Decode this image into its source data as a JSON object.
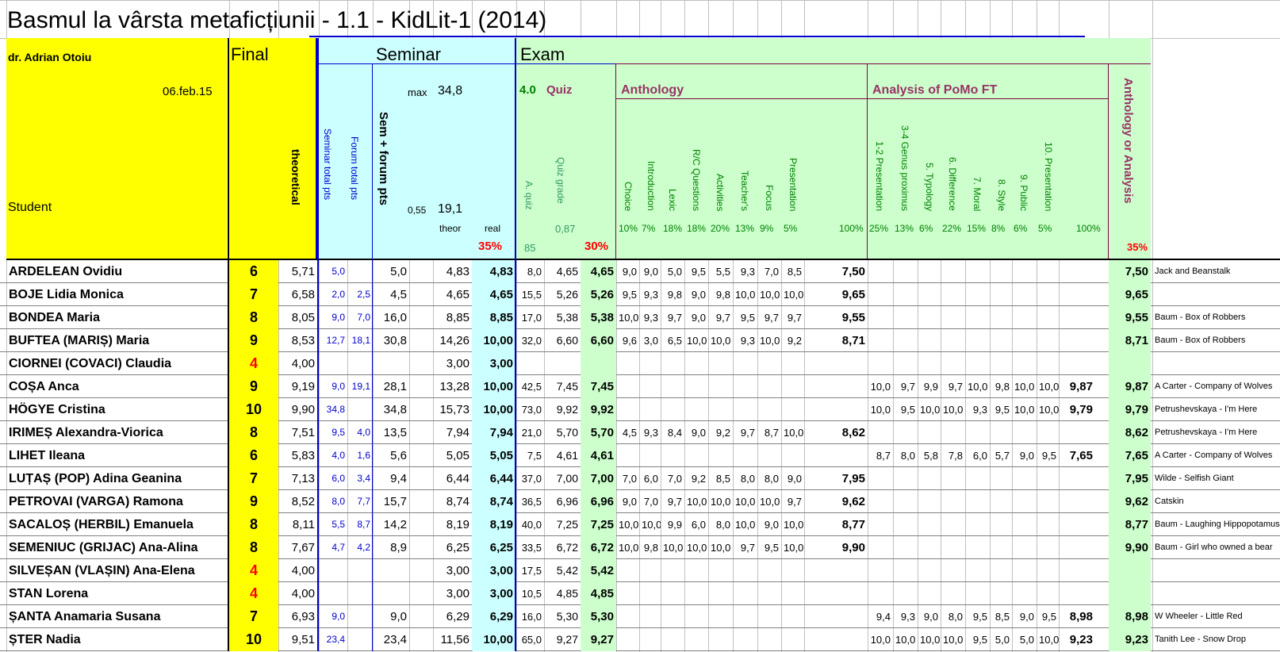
{
  "title": "Basmul la vârsta metaficțiunii - 1.1 - KidLit-1 (2014)",
  "header": {
    "teacher": "dr. Adrian Otoiu",
    "date": "06.feb.15",
    "student_label": "Student",
    "final_label": "Final",
    "theoretical_label": "theoretical",
    "seminar_label": "Seminar",
    "seminar_total": "Seminar total pts",
    "forum_total": "Forum total pts",
    "sem_forum": "Sem + forum pts",
    "max_label": "max",
    "max_value": "34,8",
    "coef": "0,55",
    "coef_value": "19,1",
    "theor": "theor",
    "real": "real",
    "sem_pct": "35%",
    "exam_label": "Exam",
    "quiz_weight": "4.0",
    "quiz_label": "Quiz",
    "a_quiz": "A. quiz",
    "quiz_grade": "Quiz grade",
    "quiz_coef": "0,87",
    "quiz_base": "85",
    "quiz_pct": "30%",
    "anthology_label": "Anthology",
    "anthology_cols": [
      {
        "name": "Choice",
        "pct": "10%"
      },
      {
        "name": "Introduction",
        "pct": "7%"
      },
      {
        "name": "Lexic",
        "pct": "18%"
      },
      {
        "name": "R/C Questions",
        "pct": "18%"
      },
      {
        "name": "Activities",
        "pct": "20%"
      },
      {
        "name": "Teacher's",
        "pct": "13%"
      },
      {
        "name": "Focus",
        "pct": "9%"
      },
      {
        "name": "Presentation",
        "pct": "5%"
      }
    ],
    "anthology_total_pct": "100%",
    "analysis_label": "Analysis of PoMo FT",
    "analysis_cols": [
      {
        "name": "1-2 Presentation",
        "pct": "25%"
      },
      {
        "name": "3-4 Genus proximus",
        "pct": "13%"
      },
      {
        "name": "5. Typology",
        "pct": "6%"
      },
      {
        "name": "6. Difference",
        "pct": "22%"
      },
      {
        "name": "7. Moral",
        "pct": "15%"
      },
      {
        "name": "8. Style",
        "pct": "8%"
      },
      {
        "name": "9. Public",
        "pct": "6%"
      },
      {
        "name": "10. Presentation",
        "pct": "5%"
      }
    ],
    "analysis_total_pct": "100%",
    "ant_or_analysis": "Anthology or Analysis",
    "ant_or_analysis_pct": "35%"
  },
  "rows": [
    {
      "name": "ARDELEAN Ovidiu",
      "final": "6",
      "theo": "5,71",
      "sem": "5,0",
      "forum": "",
      "semforum": "5,0",
      "theor": "4,83",
      "real": "4,83",
      "aquiz": "8,0",
      "qgrade": "4,65",
      "quiz": "4,65",
      "ant": [
        "9,0",
        "9,0",
        "5,0",
        "9,5",
        "5,5",
        "9,3",
        "7,0",
        "8,5"
      ],
      "anttot": "7,50",
      "ana": [
        "",
        "",
        "",
        "",
        "",
        "",
        "",
        ""
      ],
      "anatot": "",
      "final2": "7,50",
      "note": "Jack and Beanstalk"
    },
    {
      "name": "BOJE Lidia Monica",
      "final": "7",
      "theo": "6,58",
      "sem": "2,0",
      "forum": "2,5",
      "semforum": "4,5",
      "theor": "4,65",
      "real": "4,65",
      "aquiz": "15,5",
      "qgrade": "5,26",
      "quiz": "5,26",
      "ant": [
        "9,5",
        "9,3",
        "9,8",
        "9,0",
        "9,8",
        "10,0",
        "10,0",
        "10,0"
      ],
      "anttot": "9,65",
      "ana": [
        "",
        "",
        "",
        "",
        "",
        "",
        "",
        ""
      ],
      "anatot": "",
      "final2": "9,65",
      "note": ""
    },
    {
      "name": "BONDEA Maria",
      "final": "8",
      "theo": "8,05",
      "sem": "9,0",
      "forum": "7,0",
      "semforum": "16,0",
      "theor": "8,85",
      "real": "8,85",
      "aquiz": "17,0",
      "qgrade": "5,38",
      "quiz": "5,38",
      "ant": [
        "10,0",
        "9,3",
        "9,7",
        "9,0",
        "9,7",
        "9,5",
        "9,7",
        "9,7"
      ],
      "anttot": "9,55",
      "ana": [
        "",
        "",
        "",
        "",
        "",
        "",
        "",
        ""
      ],
      "anatot": "",
      "final2": "9,55",
      "note": "Baum - Box of Robbers"
    },
    {
      "name": "BUFTEA (MARIȘ) Maria",
      "final": "9",
      "theo": "8,53",
      "sem": "12,7",
      "forum": "18,1",
      "semforum": "30,8",
      "theor": "14,26",
      "real": "10,00",
      "aquiz": "32,0",
      "qgrade": "6,60",
      "quiz": "6,60",
      "ant": [
        "9,6",
        "3,0",
        "6,5",
        "10,0",
        "10,0",
        "9,3",
        "10,0",
        "9,2"
      ],
      "anttot": "8,71",
      "ana": [
        "",
        "",
        "",
        "",
        "",
        "",
        "",
        ""
      ],
      "anatot": "",
      "final2": "8,71",
      "note": "Baum - Box of Robbers"
    },
    {
      "name": "CIORNEI (COVACI) Claudia",
      "final": "4",
      "theo": "4,00",
      "sem": "",
      "forum": "",
      "semforum": "",
      "theor": "3,00",
      "real": "3,00",
      "aquiz": "",
      "qgrade": "",
      "quiz": "",
      "ant": [
        "",
        "",
        "",
        "",
        "",
        "",
        "",
        ""
      ],
      "anttot": "",
      "ana": [
        "",
        "",
        "",
        "",
        "",
        "",
        "",
        ""
      ],
      "anatot": "",
      "final2": "",
      "note": ""
    },
    {
      "name": "COȘA Anca",
      "final": "9",
      "theo": "9,19",
      "sem": "9,0",
      "forum": "19,1",
      "semforum": "28,1",
      "theor": "13,28",
      "real": "10,00",
      "aquiz": "42,5",
      "qgrade": "7,45",
      "quiz": "7,45",
      "ant": [
        "",
        "",
        "",
        "",
        "",
        "",
        "",
        ""
      ],
      "anttot": "",
      "ana": [
        "10,0",
        "9,7",
        "9,9",
        "9,7",
        "10,0",
        "9,8",
        "10,0",
        "10,0"
      ],
      "anatot": "9,87",
      "final2": "9,87",
      "note": "A Carter - Company of Wolves"
    },
    {
      "name": "HÖGYE Cristina",
      "final": "10",
      "theo": "9,90",
      "sem": "34,8",
      "forum": "",
      "semforum": "34,8",
      "theor": "15,73",
      "real": "10,00",
      "aquiz": "73,0",
      "qgrade": "9,92",
      "quiz": "9,92",
      "ant": [
        "",
        "",
        "",
        "",
        "",
        "",
        "",
        ""
      ],
      "anttot": "",
      "ana": [
        "10,0",
        "9,5",
        "10,0",
        "10,0",
        "9,3",
        "9,5",
        "10,0",
        "10,0"
      ],
      "anatot": "9,79",
      "final2": "9,79",
      "note": "Petrushevskaya - I'm Here"
    },
    {
      "name": "IRIMEȘ Alexandra-Viorica",
      "final": "8",
      "theo": "7,51",
      "sem": "9,5",
      "forum": "4,0",
      "semforum": "13,5",
      "theor": "7,94",
      "real": "7,94",
      "aquiz": "21,0",
      "qgrade": "5,70",
      "quiz": "5,70",
      "ant": [
        "4,5",
        "9,3",
        "8,4",
        "9,0",
        "9,2",
        "9,7",
        "8,7",
        "10,0"
      ],
      "anttot": "8,62",
      "ana": [
        "",
        "",
        "",
        "",
        "",
        "",
        "",
        ""
      ],
      "anatot": "",
      "final2": "8,62",
      "note": "Petrushevskaya - I'm Here"
    },
    {
      "name": "LIHET Ileana",
      "final": "6",
      "theo": "5,83",
      "sem": "4,0",
      "forum": "1,6",
      "semforum": "5,6",
      "theor": "5,05",
      "real": "5,05",
      "aquiz": "7,5",
      "qgrade": "4,61",
      "quiz": "4,61",
      "ant": [
        "",
        "",
        "",
        "",
        "",
        "",
        "",
        ""
      ],
      "anttot": "",
      "ana": [
        "8,7",
        "8,0",
        "5,8",
        "7,8",
        "6,0",
        "5,7",
        "9,0",
        "9,5"
      ],
      "anatot": "7,65",
      "final2": "7,65",
      "note": "A Carter - Company of Wolves"
    },
    {
      "name": "LUȚAȘ (POP) Adina Geanina",
      "final": "7",
      "theo": "7,13",
      "sem": "6,0",
      "forum": "3,4",
      "semforum": "9,4",
      "theor": "6,44",
      "real": "6,44",
      "aquiz": "37,0",
      "qgrade": "7,00",
      "quiz": "7,00",
      "ant": [
        "7,0",
        "6,0",
        "7,0",
        "9,2",
        "8,5",
        "8,0",
        "8,0",
        "9,0"
      ],
      "anttot": "7,95",
      "ana": [
        "",
        "",
        "",
        "",
        "",
        "",
        "",
        ""
      ],
      "anatot": "",
      "final2": "7,95",
      "note": "Wilde - Selfish Giant"
    },
    {
      "name": "PETROVAI (VARGA) Ramona",
      "final": "9",
      "theo": "8,52",
      "sem": "8,0",
      "forum": "7,7",
      "semforum": "15,7",
      "theor": "8,74",
      "real": "8,74",
      "aquiz": "36,5",
      "qgrade": "6,96",
      "quiz": "6,96",
      "ant": [
        "9,0",
        "7,0",
        "9,7",
        "10,0",
        "10,0",
        "10,0",
        "10,0",
        "9,7"
      ],
      "anttot": "9,62",
      "ana": [
        "",
        "",
        "",
        "",
        "",
        "",
        "",
        ""
      ],
      "anatot": "",
      "final2": "9,62",
      "note": "Catskin"
    },
    {
      "name": "SACALOȘ (HERBIL) Emanuela",
      "final": "8",
      "theo": "8,11",
      "sem": "5,5",
      "forum": "8,7",
      "semforum": "14,2",
      "theor": "8,19",
      "real": "8,19",
      "aquiz": "40,0",
      "qgrade": "7,25",
      "quiz": "7,25",
      "ant": [
        "10,0",
        "10,0",
        "9,9",
        "6,0",
        "8,0",
        "10,0",
        "9,0",
        "10,0"
      ],
      "anttot": "8,77",
      "ana": [
        "",
        "",
        "",
        "",
        "",
        "",
        "",
        ""
      ],
      "anatot": "",
      "final2": "8,77",
      "note": "Baum - Laughing Hippopotamus"
    },
    {
      "name": "SEMENIUC (GRIJAC) Ana-Alina",
      "final": "8",
      "theo": "7,67",
      "sem": "4,7",
      "forum": "4,2",
      "semforum": "8,9",
      "theor": "6,25",
      "real": "6,25",
      "aquiz": "33,5",
      "qgrade": "6,72",
      "quiz": "6,72",
      "ant": [
        "10,0",
        "9,8",
        "10,0",
        "10,0",
        "10,0",
        "9,7",
        "9,5",
        "10,0"
      ],
      "anttot": "9,90",
      "ana": [
        "",
        "",
        "",
        "",
        "",
        "",
        "",
        ""
      ],
      "anatot": "",
      "final2": "9,90",
      "note": "Baum - Girl who owned a bear"
    },
    {
      "name": "SILVEȘAN (VLAȘIN) Ana-Elena",
      "final": "4",
      "theo": "4,00",
      "sem": "",
      "forum": "",
      "semforum": "",
      "theor": "3,00",
      "real": "3,00",
      "aquiz": "17,5",
      "qgrade": "5,42",
      "quiz": "5,42",
      "ant": [
        "",
        "",
        "",
        "",
        "",
        "",
        "",
        ""
      ],
      "anttot": "",
      "ana": [
        "",
        "",
        "",
        "",
        "",
        "",
        "",
        ""
      ],
      "anatot": "",
      "final2": "",
      "note": ""
    },
    {
      "name": "STAN Lorena",
      "final": "4",
      "theo": "4,00",
      "sem": "",
      "forum": "",
      "semforum": "",
      "theor": "3,00",
      "real": "3,00",
      "aquiz": "10,5",
      "qgrade": "4,85",
      "quiz": "4,85",
      "ant": [
        "",
        "",
        "",
        "",
        "",
        "",
        "",
        ""
      ],
      "anttot": "",
      "ana": [
        "",
        "",
        "",
        "",
        "",
        "",
        "",
        ""
      ],
      "anatot": "",
      "final2": "",
      "note": ""
    },
    {
      "name": "ȘANTA Anamaria Susana",
      "final": "7",
      "theo": "6,93",
      "sem": "9,0",
      "forum": "",
      "semforum": "9,0",
      "theor": "6,29",
      "real": "6,29",
      "aquiz": "16,0",
      "qgrade": "5,30",
      "quiz": "5,30",
      "ant": [
        "",
        "",
        "",
        "",
        "",
        "",
        "",
        ""
      ],
      "anttot": "",
      "ana": [
        "9,4",
        "9,3",
        "9,0",
        "8,0",
        "9,5",
        "8,5",
        "9,0",
        "9,5"
      ],
      "anatot": "8,98",
      "final2": "8,98",
      "note": "W Wheeler - Little Red"
    },
    {
      "name": "ȘTER Nadia",
      "final": "10",
      "theo": "9,51",
      "sem": "23,4",
      "forum": "",
      "semforum": "23,4",
      "theor": "11,56",
      "real": "10,00",
      "aquiz": "65,0",
      "qgrade": "9,27",
      "quiz": "9,27",
      "ant": [
        "",
        "",
        "",
        "",
        "",
        "",
        "",
        ""
      ],
      "anttot": "",
      "ana": [
        "10,0",
        "10,0",
        "10,0",
        "10,0",
        "9,5",
        "5,0",
        "5,0",
        "10,0"
      ],
      "anatot": "9,23",
      "final2": "9,23",
      "note": "Tanith Lee - Snow Drop"
    }
  ]
}
